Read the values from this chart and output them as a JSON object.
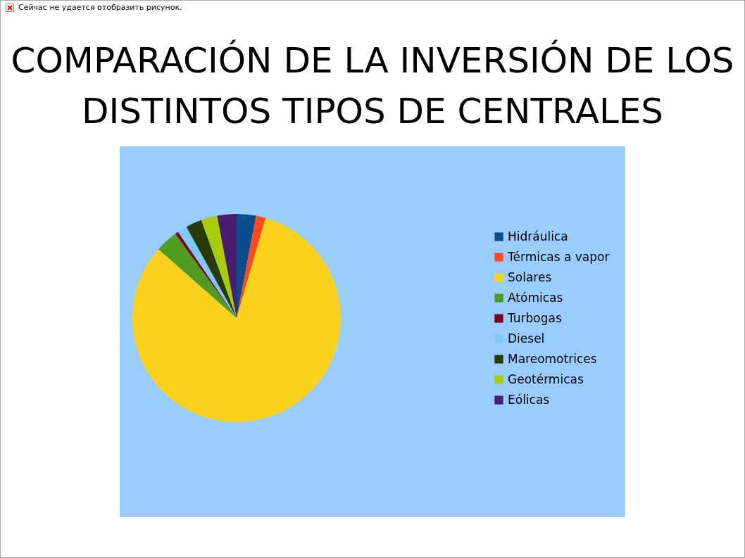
{
  "chart_data": {
    "type": "pie",
    "title": "COMPARACIÓN DE LA INVERSIÓN DE LOS DISTINTOS TIPOS DE CENTRALES",
    "annotations": [
      "Сейчас не удается отобразить рисунок."
    ],
    "categories": [
      "Hidráulica",
      "Térmicas a vapor",
      "Solares",
      "Atómicas",
      "Turbogas",
      "Diesel",
      "Mareomotrices",
      "Geotérmicas",
      "Eólicas"
    ],
    "values": [
      3,
      1.5,
      82,
      3.5,
      0.5,
      1.5,
      2.5,
      2.5,
      3
    ],
    "colors": [
      "#0b4c8c",
      "#ff4a1a",
      "#fbd31e",
      "#4f9b23",
      "#7f0020",
      "#7fc8f8",
      "#283a08",
      "#a8cc0a",
      "#4a1e6e"
    ],
    "legend": "right"
  }
}
